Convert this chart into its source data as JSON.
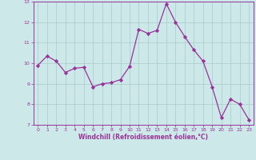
{
  "x": [
    0,
    1,
    2,
    3,
    4,
    5,
    6,
    7,
    8,
    9,
    10,
    11,
    12,
    13,
    14,
    15,
    16,
    17,
    18,
    19,
    20,
    21,
    22,
    23
  ],
  "y": [
    9.9,
    10.35,
    10.1,
    9.55,
    9.75,
    9.8,
    8.85,
    9.0,
    9.05,
    9.2,
    9.85,
    11.65,
    11.45,
    11.6,
    12.9,
    12.0,
    11.3,
    10.65,
    10.1,
    8.85,
    7.35,
    8.25,
    8.0,
    7.25
  ],
  "line_color": "#993399",
  "marker": "D",
  "marker_size": 2.2,
  "bg_color": "#cce8e8",
  "grid_color": "#aacccc",
  "xlabel": "Windchill (Refroidissement éolien,°C)",
  "xlim": [
    -0.5,
    23.5
  ],
  "ylim": [
    7,
    13
  ],
  "yticks": [
    7,
    8,
    9,
    10,
    11,
    12,
    13
  ],
  "xticks": [
    0,
    1,
    2,
    3,
    4,
    5,
    6,
    7,
    8,
    9,
    10,
    11,
    12,
    13,
    14,
    15,
    16,
    17,
    18,
    19,
    20,
    21,
    22,
    23
  ],
  "tick_color": "#993399",
  "label_color": "#993399",
  "axis_color": "#993399",
  "spine_color": "#993399"
}
